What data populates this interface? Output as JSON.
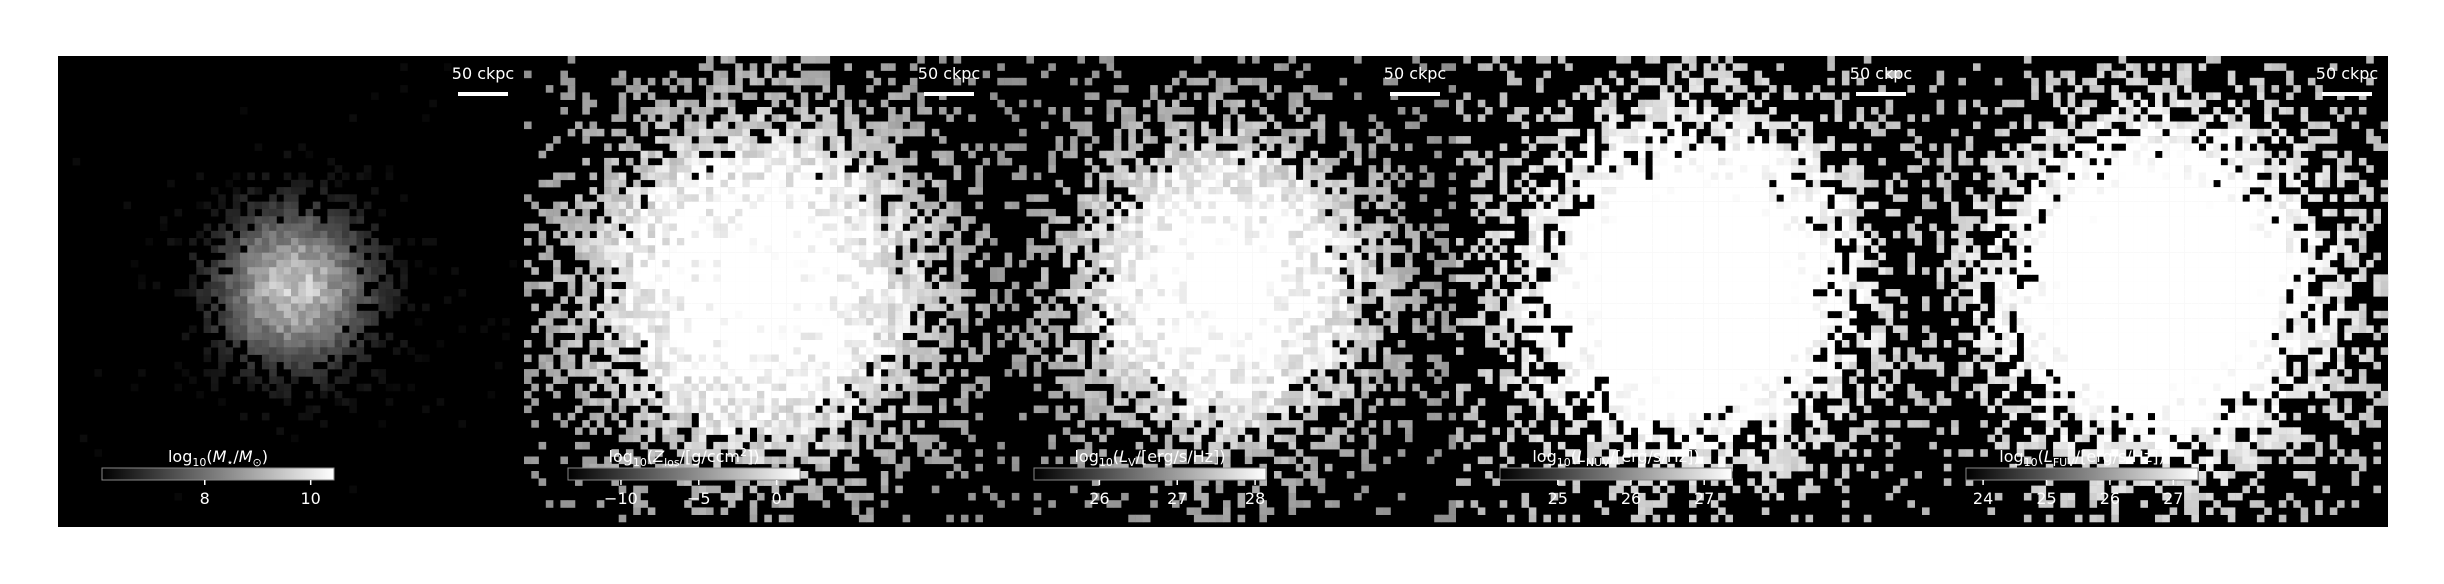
{
  "panels": [
    {
      "scale_bar": "50 ckpc",
      "colorbar": {
        "label": [
          {
            "text": "log"
          },
          {
            "text": "10",
            "sub": true
          },
          {
            "text": "("
          },
          {
            "text": "M",
            "italic": true
          },
          {
            "text": "⋆",
            "sub": true
          },
          {
            "text": "/"
          },
          {
            "text": "M",
            "italic": true
          },
          {
            "text": "⊙",
            "sub": true
          },
          {
            "text": ")"
          }
        ],
        "clim": [
          6.06,
          10.44
        ],
        "ticks": [
          8,
          10
        ]
      }
    },
    {
      "scale_bar": "50 ckpc",
      "colorbar": {
        "label": [
          {
            "text": "log"
          },
          {
            "text": "10",
            "sub": true
          },
          {
            "text": "("
          },
          {
            "text": "Z",
            "italic": true
          },
          {
            "text": "los",
            "sub": true
          },
          {
            "text": "/[g/ccm"
          },
          {
            "text": "2",
            "sup": true
          },
          {
            "text": "])"
          }
        ],
        "clim": [
          -13.4,
          1.5
        ],
        "ticks": [
          {
            "value": -10,
            "label": "−10"
          },
          {
            "value": -5,
            "label": "−5"
          },
          0
        ]
      }
    },
    {
      "scale_bar": "50 ckpc",
      "colorbar": {
        "label": [
          {
            "text": "log"
          },
          {
            "text": "10",
            "sub": true
          },
          {
            "text": "("
          },
          {
            "text": "L",
            "italic": true
          },
          {
            "text": "V",
            "sub": true
          },
          {
            "text": "/[erg/s/Hz])"
          }
        ],
        "clim": [
          25.16,
          28.14
        ],
        "ticks": [
          26,
          27,
          28
        ]
      }
    },
    {
      "scale_bar": "50 ckpc",
      "colorbar": {
        "label": [
          {
            "text": "log"
          },
          {
            "text": "10",
            "sub": true
          },
          {
            "text": "("
          },
          {
            "text": "L",
            "italic": true
          },
          {
            "text": "NUV",
            "sub": true
          },
          {
            "text": "/[erg/s/Hz])"
          }
        ],
        "clim": [
          24.21,
          27.38
        ],
        "ticks": [
          25,
          26,
          27
        ]
      }
    },
    {
      "scale_bar": "50 ckpc",
      "colorbar": {
        "label": [
          {
            "text": "log"
          },
          {
            "text": "10",
            "sub": true
          },
          {
            "text": "("
          },
          {
            "text": "L",
            "italic": true
          },
          {
            "text": "FUV",
            "sub": true
          },
          {
            "text": "/[erg/s/Hz])"
          }
        ],
        "clim": [
          23.73,
          27.39
        ],
        "ticks": [
          24,
          25,
          26,
          27
        ]
      }
    }
  ]
}
